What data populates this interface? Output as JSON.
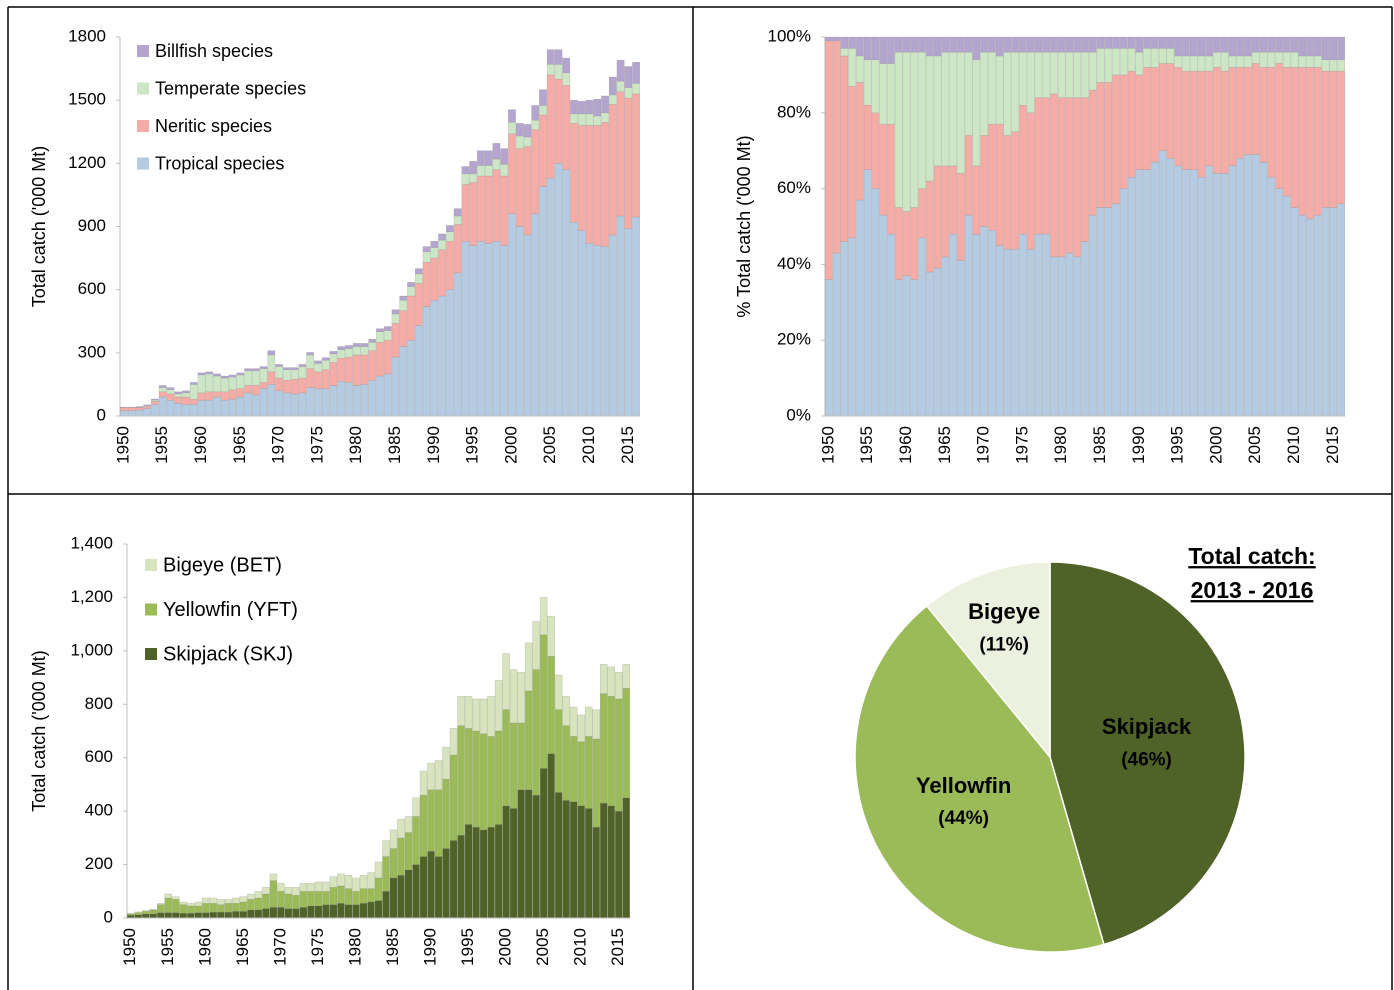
{
  "chart_data": [
    {
      "type": "stacked_bar",
      "y_label": "Total catch ('000 Mt)",
      "categories": [
        "1950",
        null,
        null,
        null,
        null,
        "1955",
        null,
        null,
        null,
        null,
        "1960",
        null,
        null,
        null,
        null,
        "1965",
        null,
        null,
        null,
        null,
        "1970",
        null,
        null,
        null,
        null,
        "1975",
        null,
        null,
        null,
        null,
        "1980",
        null,
        null,
        null,
        null,
        "1985",
        null,
        null,
        null,
        null,
        "1990",
        null,
        null,
        null,
        null,
        "1995",
        null,
        null,
        null,
        null,
        "2000",
        null,
        null,
        null,
        null,
        "2005",
        null,
        null,
        null,
        null,
        "2010",
        null,
        null,
        null,
        null,
        "2015",
        null
      ],
      "series": [
        {
          "name": "Tropical species",
          "color": "#b4cbe1",
          "values": [
            25,
            25,
            28,
            35,
            55,
            90,
            75,
            60,
            55,
            55,
            75,
            75,
            90,
            75,
            80,
            90,
            110,
            100,
            130,
            150,
            120,
            110,
            105,
            110,
            135,
            130,
            130,
            145,
            165,
            160,
            145,
            150,
            170,
            190,
            200,
            280,
            330,
            360,
            430,
            520,
            550,
            570,
            600,
            680,
            830,
            810,
            830,
            820,
            830,
            810,
            960,
            900,
            860,
            960,
            1090,
            1130,
            1200,
            1170,
            920,
            880,
            820,
            810,
            805,
            860,
            950,
            890,
            945
          ]
        },
        {
          "name": "Neritic species",
          "color": "#f5aba6",
          "values": [
            15,
            15,
            12,
            10,
            15,
            25,
            30,
            30,
            35,
            25,
            35,
            40,
            25,
            40,
            45,
            40,
            35,
            45,
            30,
            60,
            60,
            60,
            70,
            70,
            90,
            80,
            90,
            110,
            110,
            120,
            145,
            140,
            140,
            160,
            160,
            160,
            170,
            210,
            200,
            210,
            200,
            220,
            230,
            230,
            270,
            300,
            310,
            320,
            340,
            330,
            380,
            370,
            420,
            400,
            340,
            490,
            400,
            400,
            470,
            500,
            560,
            570,
            590,
            620,
            590,
            620,
            585
          ]
        },
        {
          "name": "Temperate species",
          "color": "#cde7c6",
          "values": [
            0,
            0,
            2,
            5,
            6,
            20,
            20,
            15,
            20,
            70,
            85,
            85,
            75,
            65,
            60,
            65,
            70,
            70,
            65,
            80,
            55,
            50,
            45,
            55,
            65,
            40,
            45,
            40,
            40,
            40,
            40,
            40,
            40,
            50,
            45,
            45,
            50,
            45,
            45,
            50,
            50,
            45,
            45,
            40,
            50,
            40,
            50,
            50,
            50,
            55,
            55,
            60,
            45,
            45,
            45,
            50,
            70,
            60,
            45,
            55,
            55,
            45,
            45,
            45,
            50,
            50,
            50
          ]
        },
        {
          "name": "Billfish species",
          "color": "#b4a5cf",
          "values": [
            2,
            2,
            3,
            3,
            5,
            10,
            10,
            10,
            10,
            10,
            10,
            10,
            10,
            10,
            10,
            10,
            10,
            10,
            10,
            20,
            10,
            10,
            10,
            10,
            12,
            12,
            12,
            12,
            15,
            15,
            15,
            15,
            15,
            15,
            20,
            20,
            20,
            20,
            25,
            25,
            30,
            30,
            30,
            35,
            35,
            60,
            70,
            70,
            75,
            75,
            60,
            60,
            60,
            70,
            75,
            70,
            70,
            70,
            65,
            60,
            65,
            80,
            80,
            85,
            100,
            100,
            100
          ]
        }
      ],
      "ylim": [
        0,
        1800
      ],
      "yticks": [
        0,
        300,
        600,
        900,
        1200,
        1500,
        1800
      ],
      "legend": "upper left"
    },
    {
      "type": "stacked_bar",
      "y_label": "% Total catch ('000 Mt)",
      "categories": [
        "1950",
        null,
        null,
        null,
        null,
        "1955",
        null,
        null,
        null,
        null,
        "1960",
        null,
        null,
        null,
        null,
        "1965",
        null,
        null,
        null,
        null,
        "1970",
        null,
        null,
        null,
        null,
        "1975",
        null,
        null,
        null,
        null,
        "1980",
        null,
        null,
        null,
        null,
        "1985",
        null,
        null,
        null,
        null,
        "1990",
        null,
        null,
        null,
        null,
        "1995",
        null,
        null,
        null,
        null,
        "2000",
        null,
        null,
        null,
        null,
        "2005",
        null,
        null,
        null,
        null,
        "2010",
        null,
        null,
        null,
        null,
        "2015",
        null
      ],
      "series": [
        {
          "color": "#b4cbe1",
          "values": [
            36,
            43,
            46,
            47,
            57,
            65,
            60,
            53,
            48,
            36,
            37,
            36,
            47,
            38,
            39,
            42,
            48,
            41,
            53,
            48,
            50,
            49,
            45,
            44,
            44,
            48,
            44,
            48,
            48,
            42,
            42,
            43,
            42,
            46,
            53,
            55,
            55,
            56,
            60,
            63,
            65,
            65,
            67,
            70,
            68,
            66,
            65,
            65,
            63,
            66,
            64,
            64,
            66,
            68,
            69,
            69,
            67,
            63,
            60,
            58,
            55,
            53,
            52,
            53,
            55,
            55,
            56
          ]
        },
        {
          "color": "#f5aba6",
          "values": [
            63,
            56,
            49,
            40,
            31,
            17,
            20,
            24,
            29,
            19,
            17,
            19,
            13,
            24,
            27,
            24,
            18,
            23,
            21,
            18,
            24,
            28,
            32,
            30,
            31,
            34,
            36,
            36,
            36,
            43,
            42,
            41,
            42,
            38,
            33,
            33,
            33,
            34,
            30,
            28,
            25,
            27,
            25,
            23,
            25,
            26,
            26,
            26,
            28,
            25,
            28,
            27,
            26,
            24,
            23,
            24,
            25,
            29,
            33,
            34,
            37,
            39,
            40,
            39,
            36,
            36,
            35
          ]
        },
        {
          "color": "#cde7c6",
          "values": [
            0,
            0,
            2,
            10,
            7,
            12,
            14,
            16,
            16,
            41,
            42,
            41,
            36,
            33,
            29,
            30,
            30,
            32,
            22,
            28,
            22,
            19,
            18,
            22,
            21,
            14,
            16,
            12,
            12,
            11,
            12,
            12,
            12,
            12,
            10,
            9,
            9,
            7,
            7,
            6,
            6,
            5,
            5,
            4,
            4,
            3,
            4,
            4,
            4,
            4,
            4,
            5,
            3,
            3,
            3,
            3,
            4,
            4,
            3,
            4,
            4,
            3,
            3,
            3,
            3,
            3,
            3
          ]
        },
        {
          "color": "#b4a5cf",
          "values": [
            1,
            1,
            3,
            3,
            5,
            6,
            6,
            7,
            7,
            4,
            4,
            4,
            4,
            5,
            5,
            4,
            4,
            4,
            4,
            6,
            4,
            4,
            5,
            4,
            4,
            4,
            4,
            4,
            4,
            4,
            4,
            4,
            4,
            4,
            4,
            3,
            3,
            3,
            3,
            3,
            4,
            3,
            3,
            3,
            3,
            5,
            5,
            5,
            5,
            5,
            4,
            4,
            5,
            5,
            5,
            4,
            4,
            4,
            4,
            4,
            4,
            5,
            5,
            5,
            6,
            6,
            6
          ]
        }
      ],
      "ylim": [
        0,
        100
      ],
      "yticks": [
        {
          "value": 0,
          "label": "0%"
        },
        {
          "value": 20,
          "label": "20%"
        },
        {
          "value": 40,
          "label": "40%"
        },
        {
          "value": 60,
          "label": "60%"
        },
        {
          "value": 80,
          "label": "80%"
        },
        {
          "value": 100,
          "label": "100%"
        }
      ]
    },
    {
      "type": "stacked_bar",
      "y_label": "Total catch ('000 Mt)",
      "categories": [
        "1950",
        null,
        null,
        null,
        null,
        "1955",
        null,
        null,
        null,
        null,
        "1960",
        null,
        null,
        null,
        null,
        "1965",
        null,
        null,
        null,
        null,
        "1970",
        null,
        null,
        null,
        null,
        "1975",
        null,
        null,
        null,
        null,
        "1980",
        null,
        null,
        null,
        null,
        "1985",
        null,
        null,
        null,
        null,
        "1990",
        null,
        null,
        null,
        null,
        "1995",
        null,
        null,
        null,
        null,
        "2000",
        null,
        null,
        null,
        null,
        "2005",
        null,
        null,
        null,
        null,
        "2010",
        null,
        null,
        null,
        null,
        "2015",
        null
      ],
      "series": [
        {
          "name": "Skipjack (SKJ)",
          "color": "#4f6228",
          "values": [
            10,
            12,
            15,
            15,
            20,
            20,
            20,
            18,
            18,
            20,
            20,
            22,
            22,
            22,
            25,
            25,
            30,
            30,
            35,
            40,
            40,
            35,
            35,
            40,
            45,
            45,
            50,
            50,
            55,
            50,
            50,
            55,
            60,
            65,
            100,
            150,
            160,
            180,
            200,
            230,
            250,
            230,
            260,
            290,
            310,
            350,
            340,
            330,
            340,
            350,
            420,
            410,
            480,
            480,
            460,
            560,
            615,
            470,
            440,
            435,
            420,
            410,
            340,
            430,
            420,
            400,
            450
          ]
        },
        {
          "name": "Yellowfin (YFT)",
          "color": "#9bbb59",
          "values": [
            5,
            8,
            10,
            15,
            30,
            55,
            50,
            32,
            27,
            25,
            35,
            33,
            28,
            33,
            30,
            35,
            40,
            45,
            55,
            100,
            60,
            55,
            50,
            60,
            55,
            55,
            50,
            65,
            65,
            60,
            50,
            55,
            50,
            85,
            130,
            110,
            140,
            140,
            180,
            230,
            230,
            250,
            260,
            320,
            410,
            360,
            360,
            360,
            340,
            350,
            360,
            320,
            250,
            370,
            470,
            500,
            365,
            310,
            280,
            245,
            240,
            270,
            330,
            410,
            410,
            420,
            410
          ]
        },
        {
          "name": "Bigeye (BET)",
          "color": "#d7e4bd",
          "values": [
            3,
            3,
            3,
            3,
            5,
            15,
            10,
            10,
            10,
            15,
            20,
            20,
            20,
            15,
            20,
            20,
            20,
            25,
            25,
            25,
            30,
            25,
            30,
            30,
            30,
            35,
            35,
            40,
            45,
            50,
            50,
            50,
            60,
            60,
            60,
            70,
            70,
            60,
            70,
            90,
            100,
            110,
            120,
            100,
            110,
            120,
            120,
            130,
            150,
            190,
            210,
            200,
            190,
            180,
            180,
            140,
            150,
            130,
            110,
            110,
            100,
            110,
            110,
            110,
            110,
            100,
            90
          ]
        }
      ],
      "ylim": [
        0,
        1400
      ],
      "yticks": [
        0,
        200,
        400,
        600,
        800,
        {
          "value": 1000,
          "label": "1,000"
        },
        {
          "value": 1200,
          "label": "1,200"
        },
        {
          "value": 1400,
          "label": "1,400"
        }
      ],
      "legend": "upper left"
    },
    {
      "type": "pie",
      "title_lines": [
        "Total catch:",
        "2013 - 2016"
      ],
      "categories": [
        "Skipjack",
        "Yellowfin",
        "Bigeye"
      ],
      "values": [
        46,
        44,
        11
      ],
      "value_labels": [
        "(46%)",
        "(44%)",
        "(11%)"
      ],
      "colors": [
        "#4f6228",
        "#9bbb59",
        "#ebf1de"
      ],
      "label_colors": [
        "#ffffff",
        "#ffffff",
        "#7f7f7f"
      ]
    }
  ]
}
